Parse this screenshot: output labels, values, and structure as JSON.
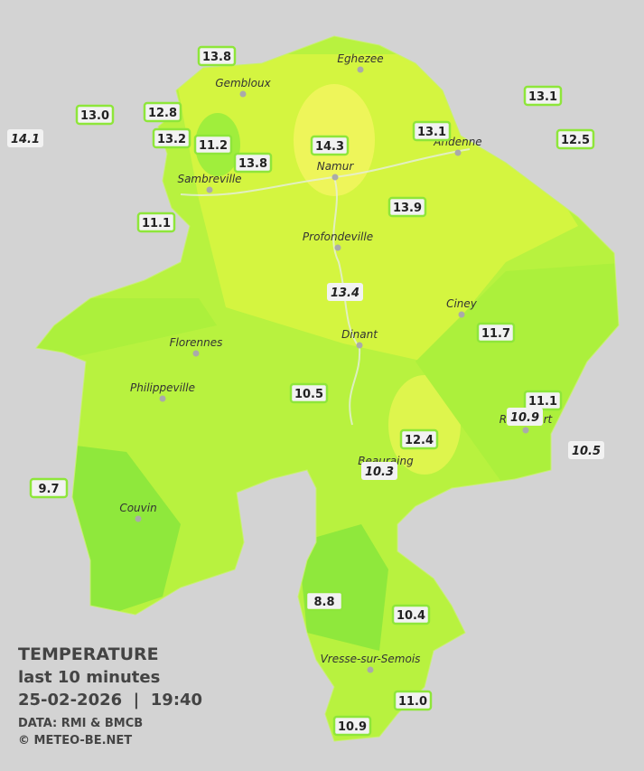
{
  "stations": [
    "13.8",
    "13.0",
    "12.8",
    "14.1",
    "13.2",
    "11.2",
    "13.8",
    "14.3",
    "13.1",
    "13.1",
    "12.5",
    "11.1",
    "13.9",
    "13.4",
    "11.7",
    "10.5",
    "11.1",
    "10.9",
    "12.4",
    "10.3",
    "10.5",
    "9.7",
    "8.8",
    "10.4",
    "11.0",
    "10.9"
  ],
  "towns": [
    "Eghezee",
    "Gembloux",
    "Namur",
    "Andenne",
    "Sambreville",
    "Profondeville",
    "Ciney",
    "Dinant",
    "Florennes",
    "Philippeville",
    "Rochefort",
    "Beauraing",
    "Couvin",
    "Vresse-sur-Semois"
  ],
  "legend": {
    "title": "TEMPERATURE",
    "subtitle": "last 10 minutes",
    "timestamp": "25-02-2026  |  19:40",
    "source": "DATA: RMI & BMCB",
    "credit": "© METEO-BE.NET"
  }
}
